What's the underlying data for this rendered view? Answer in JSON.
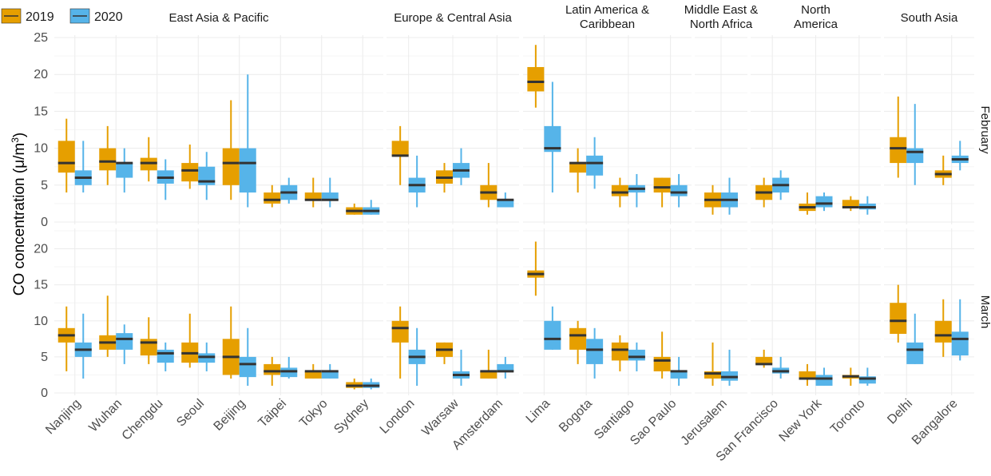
{
  "chart_data": {
    "type": "boxplot",
    "ylabel": "CO concentration (μ/m³)",
    "ylabel_parts": {
      "prefix": "CO concentration (μ/m",
      "sup": "3",
      "suffix": ")"
    },
    "colors": {
      "2019": "#E69F00",
      "2020": "#56B4E9",
      "grid": "#ececec",
      "median": "#333333"
    },
    "legend": [
      {
        "key": "2019",
        "label": "2019"
      },
      {
        "key": "2020",
        "label": "2020"
      }
    ],
    "regions": [
      {
        "name": [
          "East Asia & Pacific"
        ],
        "cities": [
          "Nanjing",
          "Wuhan",
          "Chengdu",
          "Seoul",
          "Beijing",
          "Taipei",
          "Tokyo",
          "Sydney"
        ]
      },
      {
        "name": [
          "Europe & Central Asia"
        ],
        "cities": [
          "London",
          "Warsaw",
          "Amsterdam"
        ]
      },
      {
        "name": [
          "Latin America &",
          "Caribbean"
        ],
        "cities": [
          "Lima",
          "Bogota",
          "Santiago",
          "Sao Paulo"
        ]
      },
      {
        "name": [
          "Middle East &",
          "North Africa"
        ],
        "cities": [
          "Jerusalem"
        ]
      },
      {
        "name": [
          "North",
          "America"
        ],
        "cities": [
          "San Francisco",
          "New York",
          "Toronto"
        ]
      },
      {
        "name": [
          "South Asia"
        ],
        "cities": [
          "Delhi",
          "Bangalore"
        ]
      }
    ],
    "months": [
      {
        "name": "February",
        "ylim": [
          0,
          25
        ],
        "ticks": [
          0,
          5,
          10,
          15,
          20,
          25
        ],
        "data": {
          "Nanjing": {
            "2019": [
              4,
              6.7,
              8,
              11,
              14
            ],
            "2020": [
              4,
              5,
              6,
              7,
              11
            ]
          },
          "Wuhan": {
            "2019": [
              5,
              7,
              8.2,
              10,
              13
            ],
            "2020": [
              4,
              6,
              8,
              8,
              10
            ]
          },
          "Chengdu": {
            "2019": [
              5.5,
              7,
              8,
              8.7,
              11.5
            ],
            "2020": [
              3,
              5.2,
              6,
              7,
              8.5
            ]
          },
          "Seoul": {
            "2019": [
              4.5,
              5.5,
              7,
              8,
              10.5
            ],
            "2020": [
              3,
              5,
              5.5,
              7.5,
              9.5
            ]
          },
          "Beijing": {
            "2019": [
              3,
              5,
              8,
              10,
              16.5
            ],
            "2020": [
              2,
              4,
              8,
              10,
              20
            ]
          },
          "Taipei": {
            "2019": [
              2,
              2.5,
              3,
              4,
              5
            ],
            "2020": [
              2.5,
              3,
              4,
              5,
              6
            ]
          },
          "Tokyo": {
            "2019": [
              2,
              3,
              3,
              4,
              6
            ],
            "2020": [
              2,
              3,
              3,
              4,
              6
            ]
          },
          "Sydney": {
            "2019": [
              1,
              1,
              1.5,
              2,
              2.5
            ],
            "2020": [
              1,
              1,
              1.5,
              2,
              3
            ]
          },
          "London": {
            "2019": [
              5,
              9,
              9,
              11,
              13
            ],
            "2020": [
              2,
              4,
              5,
              6,
              9
            ]
          },
          "Warsaw": {
            "2019": [
              4,
              5.2,
              6,
              7,
              8
            ],
            "2020": [
              5,
              6,
              7,
              8,
              10
            ]
          },
          "Amsterdam": {
            "2019": [
              2,
              3,
              4,
              5,
              8
            ],
            "2020": [
              2,
              2,
              3,
              3,
              4
            ]
          },
          "Lima": {
            "2019": [
              15.5,
              17.7,
              19,
              21,
              24
            ],
            "2020": [
              4,
              9.5,
              10,
              13,
              19
            ]
          },
          "Bogota": {
            "2019": [
              4,
              6.7,
              8,
              8,
              10
            ],
            "2020": [
              4.5,
              6.3,
              8,
              9,
              11.5
            ]
          },
          "Santiago": {
            "2019": [
              2,
              3.5,
              4,
              5,
              6
            ],
            "2020": [
              2,
              4,
              4.5,
              5,
              6.5
            ]
          },
          "Sao Paulo": {
            "2019": [
              2,
              4,
              4.7,
              6,
              6
            ],
            "2020": [
              2,
              3.5,
              4,
              5,
              6.5
            ]
          },
          "Jerusalem": {
            "2019": [
              1,
              2,
              3,
              4,
              5
            ],
            "2020": [
              1,
              2,
              3,
              4,
              6
            ]
          },
          "San Francisco": {
            "2019": [
              2,
              3,
              4,
              5,
              6
            ],
            "2020": [
              3,
              4,
              5,
              6,
              7
            ]
          },
          "New York": {
            "2019": [
              1,
              1.5,
              2,
              2.5,
              4
            ],
            "2020": [
              1.5,
              2,
              2.5,
              3.5,
              4
            ]
          },
          "Toronto": {
            "2019": [
              1.5,
              2,
              2,
              3,
              3.5
            ],
            "2020": [
              1,
              1.7,
              2,
              2.5,
              3.5
            ]
          },
          "Delhi": {
            "2019": [
              6,
              8,
              10,
              11.5,
              17
            ],
            "2020": [
              5,
              8,
              9.5,
              10,
              16
            ]
          },
          "Bangalore": {
            "2019": [
              5,
              6,
              6.5,
              7,
              9
            ],
            "2020": [
              7,
              8,
              8.5,
              9,
              11
            ]
          }
        }
      },
      {
        "name": "March",
        "ylim": [
          0,
          22.5
        ],
        "ticks": [
          0,
          5,
          10,
          15,
          20
        ],
        "data": {
          "Nanjing": {
            "2019": [
              3,
              7,
              8,
              9,
              12
            ],
            "2020": [
              2,
              5,
              6,
              7,
              11
            ]
          },
          "Wuhan": {
            "2019": [
              5,
              6,
              7,
              8,
              13.5
            ],
            "2020": [
              4,
              6,
              7.5,
              8.3,
              9.5
            ]
          },
          "Chengdu": {
            "2019": [
              4,
              5.2,
              7,
              7.5,
              10.5
            ],
            "2020": [
              3,
              4.2,
              5.5,
              6,
              7
            ]
          },
          "Seoul": {
            "2019": [
              3.5,
              4.2,
              5.5,
              7,
              11
            ],
            "2020": [
              3,
              4.2,
              5,
              5.5,
              7
            ]
          },
          "Beijing": {
            "2019": [
              2,
              2.5,
              5,
              7.5,
              12
            ],
            "2020": [
              1,
              2.2,
              4,
              5,
              9
            ]
          },
          "Taipei": {
            "2019": [
              1,
              2.5,
              3,
              4,
              5
            ],
            "2020": [
              2,
              2.2,
              3,
              3.5,
              5
            ]
          },
          "Tokyo": {
            "2019": [
              2,
              2,
              3,
              3,
              4
            ],
            "2020": [
              2,
              2,
              3,
              3,
              4
            ]
          },
          "Sydney": {
            "2019": [
              0.5,
              0.7,
              1,
              1.5,
              2
            ],
            "2020": [
              0.5,
              0.7,
              1,
              1.5,
              2
            ]
          },
          "London": {
            "2019": [
              2,
              7,
              9,
              10,
              12
            ],
            "2020": [
              1,
              4,
              5,
              6,
              9
            ]
          },
          "Warsaw": {
            "2019": [
              4,
              5,
              6,
              7,
              7
            ],
            "2020": [
              1,
              2,
              2.5,
              3,
              6
            ]
          },
          "Amsterdam": {
            "2019": [
              2,
              2,
              3,
              3,
              6
            ],
            "2020": [
              2,
              3,
              3,
              4,
              5
            ]
          },
          "Lima": {
            "2019": [
              13.5,
              16,
              16.5,
              17,
              21
            ],
            "2020": [
              6,
              6,
              7.5,
              10,
              12
            ]
          },
          "Bogota": {
            "2019": [
              4,
              6,
              8,
              9,
              10
            ],
            "2020": [
              2,
              4,
              6,
              7.5,
              9
            ]
          },
          "Santiago": {
            "2019": [
              3,
              4.5,
              6,
              7,
              8
            ],
            "2020": [
              3,
              4.5,
              5,
              6,
              7
            ]
          },
          "Sao Paulo": {
            "2019": [
              2,
              3,
              4.5,
              5,
              8.5
            ],
            "2020": [
              1,
              2,
              3,
              3,
              5
            ]
          },
          "Jerusalem": {
            "2019": [
              1,
              2,
              2.7,
              3,
              7
            ],
            "2020": [
              1,
              1.7,
              2.2,
              3,
              6
            ]
          },
          "San Francisco": {
            "2019": [
              3.5,
              4,
              4,
              5,
              6
            ],
            "2020": [
              2,
              2.7,
              3,
              3.5,
              5
            ]
          },
          "New York": {
            "2019": [
              1,
              2,
              2,
              3,
              4
            ],
            "2020": [
              1,
              1,
              2,
              2.5,
              3.5
            ]
          },
          "Toronto": {
            "2019": [
              1,
              2,
              2.3,
              2.5,
              3.5
            ],
            "2020": [
              1,
              1.3,
              2,
              2.3,
              3.5
            ]
          },
          "Delhi": {
            "2019": [
              7,
              8.2,
              10,
              12.5,
              15
            ],
            "2020": [
              4,
              4,
              6,
              7,
              11
            ]
          },
          "Bangalore": {
            "2019": [
              5,
              7,
              8,
              10,
              13
            ],
            "2020": [
              4.5,
              5.2,
              7.5,
              8.5,
              13
            ]
          }
        }
      }
    ]
  }
}
